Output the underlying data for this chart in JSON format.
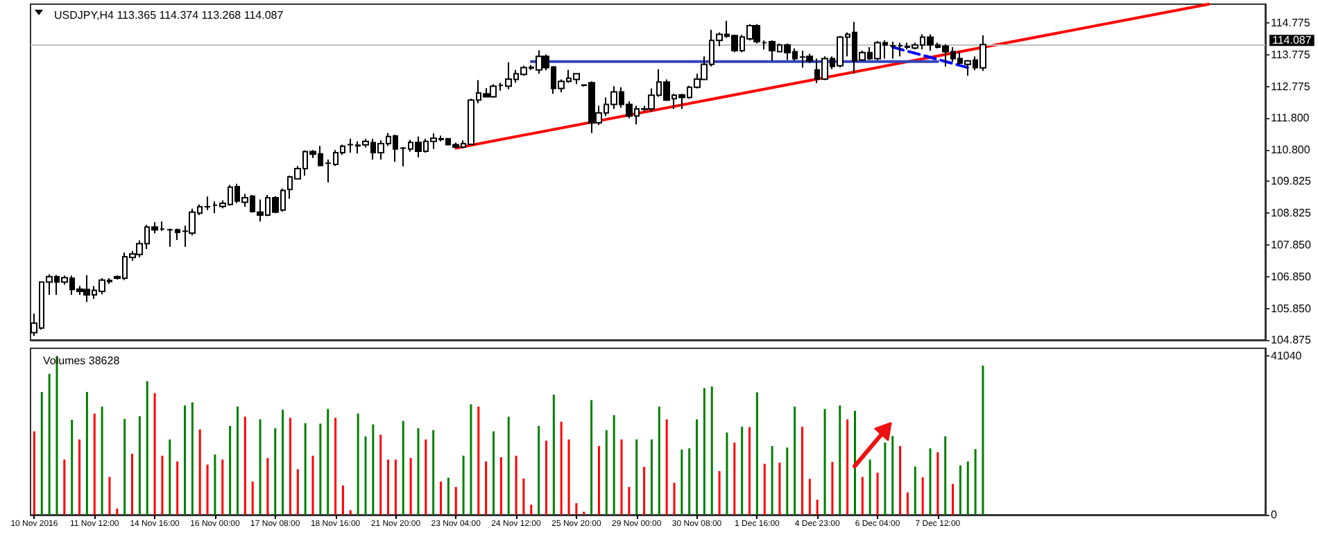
{
  "chart_data": [
    {
      "type": "candlestick",
      "title": "USDJPY,H4 113.365 114.374 113.268 114.087",
      "categories": [
        null,
        null,
        null,
        null,
        null,
        null,
        null,
        null,
        null,
        null,
        null,
        null,
        null,
        null,
        null,
        null,
        null,
        null,
        null,
        null,
        null,
        null,
        null,
        null,
        null,
        null,
        null,
        null,
        null,
        null,
        null,
        null,
        null,
        null,
        null,
        null,
        null,
        null,
        null,
        null,
        null,
        null,
        null,
        null,
        null,
        null,
        null,
        null,
        null,
        null,
        null,
        null,
        null,
        null,
        null,
        null,
        null,
        null,
        null,
        null,
        null,
        null,
        null,
        null,
        null,
        null,
        null,
        null,
        null,
        null,
        null,
        null,
        null,
        null,
        null,
        null,
        null,
        null,
        null,
        null,
        null,
        null,
        null,
        null,
        null,
        null,
        null,
        null,
        null,
        null,
        null,
        null,
        null,
        null,
        null,
        null,
        null,
        null,
        null,
        null,
        null,
        null,
        null,
        null,
        null,
        null,
        null,
        null,
        null,
        null,
        null,
        null,
        null,
        null,
        null,
        null,
        null,
        null,
        null,
        null,
        null,
        null,
        null,
        null,
        null,
        null,
        null,
        null,
        null,
        null,
        null,
        null,
        null,
        null,
        null,
        null,
        null,
        null,
        null,
        null,
        null,
        null,
        null,
        null,
        null,
        null,
        null,
        null,
        null,
        null,
        null,
        null,
        null,
        null,
        null,
        null,
        null,
        null,
        null,
        null,
        null,
        null,
        null,
        null
      ],
      "ohlc": [
        [
          105.1,
          105.7,
          105.0,
          105.4
        ],
        [
          105.25,
          106.7,
          105.2,
          106.68
        ],
        [
          106.68,
          106.92,
          106.28,
          106.85
        ],
        [
          106.85,
          106.9,
          106.28,
          106.68
        ],
        [
          106.68,
          106.88,
          106.6,
          106.82
        ],
        [
          106.8,
          106.88,
          106.28,
          106.45
        ],
        [
          106.46,
          106.56,
          106.28,
          106.39
        ],
        [
          106.45,
          106.9,
          106.06,
          106.28
        ],
        [
          106.28,
          106.56,
          106.16,
          106.42
        ],
        [
          106.39,
          106.8,
          106.3,
          106.74
        ],
        [
          106.73,
          106.8,
          106.62,
          106.7
        ],
        [
          106.85,
          106.88,
          106.76,
          106.8
        ],
        [
          106.8,
          107.6,
          106.74,
          107.47
        ],
        [
          107.45,
          107.65,
          107.35,
          107.56
        ],
        [
          107.54,
          107.98,
          107.45,
          107.88
        ],
        [
          107.88,
          108.47,
          107.71,
          108.4
        ],
        [
          108.4,
          108.55,
          108.2,
          108.31
        ],
        [
          108.33,
          108.57,
          108.28,
          108.33
        ],
        [
          108.31,
          108.35,
          107.78,
          108.31
        ],
        [
          108.31,
          108.35,
          107.99,
          108.23
        ],
        [
          108.27,
          108.44,
          107.78,
          108.27
        ],
        [
          108.21,
          108.97,
          108.14,
          108.86
        ],
        [
          108.83,
          109.1,
          108.77,
          109.03
        ],
        [
          109.03,
          109.35,
          108.93,
          109.03
        ],
        [
          109.08,
          109.2,
          108.83,
          109.08
        ],
        [
          109.04,
          109.23,
          108.98,
          109.14
        ],
        [
          109.1,
          109.71,
          109.07,
          109.64
        ],
        [
          109.66,
          109.75,
          109.14,
          109.21
        ],
        [
          109.17,
          109.43,
          109.03,
          109.31
        ],
        [
          109.36,
          109.4,
          108.85,
          108.88
        ],
        [
          108.86,
          109.26,
          108.57,
          108.77
        ],
        [
          108.77,
          109.4,
          108.74,
          109.31
        ],
        [
          109.31,
          109.36,
          108.83,
          108.86
        ],
        [
          108.93,
          109.6,
          108.88,
          109.54
        ],
        [
          109.57,
          110.0,
          109.28,
          109.96
        ],
        [
          109.9,
          110.3,
          109.88,
          110.22
        ],
        [
          110.22,
          110.79,
          110.0,
          110.75
        ],
        [
          110.75,
          110.8,
          110.55,
          110.67
        ],
        [
          110.68,
          110.93,
          110.29,
          110.32
        ],
        [
          110.39,
          110.5,
          109.79,
          110.39
        ],
        [
          110.35,
          110.8,
          110.3,
          110.72
        ],
        [
          110.72,
          110.97,
          110.65,
          110.92
        ],
        [
          110.97,
          111.15,
          110.72,
          110.97
        ],
        [
          110.93,
          111.07,
          110.69,
          110.95
        ],
        [
          110.96,
          111.15,
          110.88,
          111.07
        ],
        [
          111.03,
          111.15,
          110.5,
          110.72
        ],
        [
          110.72,
          111.1,
          110.5,
          111.0
        ],
        [
          111.0,
          111.33,
          110.93,
          111.22
        ],
        [
          111.24,
          111.28,
          110.43,
          110.83
        ],
        [
          110.86,
          110.89,
          110.29,
          110.86
        ],
        [
          110.83,
          111.12,
          110.75,
          111.04
        ],
        [
          111.04,
          111.22,
          110.57,
          110.76
        ],
        [
          110.76,
          111.15,
          110.72,
          111.07
        ],
        [
          111.07,
          111.32,
          110.83,
          111.17
        ],
        [
          111.15,
          111.25,
          111.07,
          111.13
        ],
        [
          111.15,
          111.18,
          110.94,
          110.97
        ],
        [
          110.97,
          111.03,
          110.86,
          110.89
        ],
        [
          110.89,
          111.1,
          110.86,
          111.0
        ],
        [
          110.98,
          112.4,
          110.95,
          112.36
        ],
        [
          112.36,
          112.98,
          112.26,
          112.58
        ],
        [
          112.55,
          112.73,
          112.45,
          112.46
        ],
        [
          112.46,
          112.85,
          112.43,
          112.79
        ],
        [
          112.82,
          112.9,
          112.65,
          112.82
        ],
        [
          112.79,
          113.54,
          112.7,
          113.01
        ],
        [
          113.0,
          113.3,
          112.9,
          113.18
        ],
        [
          113.16,
          113.43,
          113.12,
          113.37
        ],
        [
          113.36,
          113.45,
          113.3,
          113.38
        ],
        [
          113.3,
          113.91,
          113.18,
          113.72
        ],
        [
          113.72,
          113.78,
          113.29,
          113.37
        ],
        [
          113.39,
          113.42,
          112.55,
          112.72
        ],
        [
          112.72,
          113.0,
          112.6,
          112.94
        ],
        [
          112.94,
          113.3,
          112.9,
          113.04
        ],
        [
          113.0,
          113.2,
          112.86,
          113.18
        ],
        [
          112.83,
          112.85,
          112.78,
          112.82
        ],
        [
          112.9,
          112.94,
          111.33,
          111.65
        ],
        [
          111.65,
          112.18,
          111.58,
          111.96
        ],
        [
          111.96,
          112.44,
          111.86,
          112.22
        ],
        [
          112.22,
          112.79,
          112.08,
          112.61
        ],
        [
          112.61,
          112.76,
          112.12,
          112.22
        ],
        [
          112.22,
          112.32,
          111.79,
          111.86
        ],
        [
          111.86,
          112.18,
          111.6,
          112.08
        ],
        [
          112.07,
          112.18,
          112.0,
          112.08
        ],
        [
          112.08,
          112.72,
          112.0,
          112.51
        ],
        [
          112.51,
          113.32,
          112.46,
          112.92
        ],
        [
          112.92,
          113.0,
          112.33,
          112.36
        ],
        [
          112.4,
          112.55,
          112.08,
          112.51
        ],
        [
          112.52,
          112.55,
          112.08,
          112.44
        ],
        [
          112.44,
          112.8,
          112.4,
          112.76
        ],
        [
          112.76,
          113.18,
          112.72,
          113.01
        ],
        [
          113.0,
          113.72,
          112.98,
          113.47
        ],
        [
          113.47,
          114.55,
          113.41,
          114.22
        ],
        [
          114.22,
          114.47,
          114.04,
          114.41
        ],
        [
          114.41,
          114.83,
          114.3,
          114.35
        ],
        [
          114.37,
          114.4,
          113.85,
          113.9
        ],
        [
          113.9,
          114.39,
          113.85,
          114.33
        ],
        [
          114.27,
          114.73,
          114.22,
          114.68
        ],
        [
          114.68,
          114.73,
          114.12,
          114.18
        ],
        [
          114.15,
          114.22,
          113.94,
          114.15
        ],
        [
          114.18,
          114.22,
          113.58,
          113.9
        ],
        [
          113.87,
          114.12,
          113.85,
          114.08
        ],
        [
          114.08,
          114.12,
          113.61,
          113.84
        ],
        [
          113.87,
          113.97,
          113.58,
          113.65
        ],
        [
          113.7,
          113.9,
          113.37,
          113.7
        ],
        [
          113.72,
          113.8,
          113.51,
          113.58
        ],
        [
          113.3,
          113.65,
          112.89,
          113.01
        ],
        [
          113.01,
          113.72,
          112.98,
          113.65
        ],
        [
          113.65,
          113.72,
          113.32,
          113.41
        ],
        [
          113.43,
          114.36,
          113.38,
          114.32
        ],
        [
          114.32,
          114.47,
          113.72,
          114.41
        ],
        [
          114.47,
          114.8,
          113.18,
          113.58
        ],
        [
          113.61,
          113.9,
          113.58,
          113.84
        ],
        [
          113.84,
          114.01,
          113.61,
          113.65
        ],
        [
          113.65,
          114.2,
          113.6,
          114.15
        ],
        [
          114.15,
          114.22,
          113.65,
          114.08
        ],
        [
          114.05,
          114.18,
          113.65,
          114.05
        ],
        [
          114.05,
          114.15,
          113.72,
          114.05
        ],
        [
          114.01,
          114.15,
          113.94,
          114.03
        ],
        [
          113.98,
          114.15,
          113.94,
          114.08
        ],
        [
          114.08,
          114.41,
          113.94,
          114.32
        ],
        [
          114.32,
          114.41,
          113.9,
          114.08
        ],
        [
          114.08,
          114.15,
          113.97,
          114.01
        ],
        [
          114.04,
          114.1,
          113.41,
          113.87
        ],
        [
          113.87,
          114.01,
          113.55,
          113.65
        ],
        [
          113.65,
          113.87,
          113.47,
          113.51
        ],
        [
          113.47,
          113.61,
          113.12,
          113.58
        ],
        [
          113.61,
          113.72,
          113.29,
          113.37
        ],
        [
          113.365,
          114.374,
          113.268,
          114.087
        ],
        null,
        null,
        null,
        null,
        null,
        null,
        null,
        null,
        null,
        null,
        null,
        null,
        null,
        null,
        null,
        null,
        null,
        null,
        null,
        null,
        null,
        null,
        null,
        null,
        null,
        null,
        null,
        null,
        null,
        null,
        null,
        null,
        null,
        null,
        null,
        null,
        null
      ],
      "series": [
        {
          "type": "line",
          "color": "#ff0000",
          "values": [
            null,
            null,
            null,
            null,
            null,
            null,
            null,
            null,
            null,
            null,
            null,
            null,
            null,
            null,
            null,
            null,
            null,
            null,
            null,
            null,
            null,
            null,
            null,
            null,
            null,
            null,
            null,
            null,
            null,
            null,
            null,
            null,
            null,
            null,
            null,
            null,
            null,
            null,
            null,
            null,
            null,
            null,
            null,
            null,
            null,
            null,
            null,
            null,
            null,
            null,
            null,
            null,
            null,
            null,
            null,
            null,
            110.86,
            null,
            null,
            null,
            null,
            null,
            null,
            null,
            null,
            null,
            null,
            null,
            null,
            null,
            null,
            null,
            null,
            null,
            null,
            null,
            null,
            null,
            null,
            null,
            null,
            null,
            null,
            null,
            null,
            null,
            null,
            null,
            null,
            null,
            null,
            null,
            null,
            null,
            null,
            null,
            null,
            null,
            null,
            null,
            null,
            null,
            null,
            null,
            null,
            null,
            null,
            null,
            null,
            null,
            null,
            null,
            null,
            null,
            null,
            null,
            null,
            null,
            null,
            null,
            null,
            null,
            null,
            null,
            null,
            null,
            null,
            null,
            null,
            null,
            null,
            null,
            null,
            null,
            null,
            null,
            null,
            null,
            null,
            null,
            null,
            null,
            null,
            null,
            null,
            null,
            null,
            null,
            null,
            null,
            null,
            null,
            null,
            null,
            null,
            null,
            115.35,
            null,
            null,
            null,
            null,
            null,
            null,
            null
          ]
        },
        {
          "type": "line",
          "color": "#3344bb",
          "values": [
            null,
            null,
            null,
            null,
            null,
            null,
            null,
            null,
            null,
            null,
            null,
            null,
            null,
            null,
            null,
            null,
            null,
            null,
            null,
            null,
            null,
            null,
            null,
            null,
            null,
            null,
            null,
            null,
            null,
            null,
            null,
            null,
            null,
            null,
            null,
            null,
            null,
            null,
            null,
            null,
            null,
            null,
            null,
            null,
            null,
            null,
            null,
            null,
            null,
            null,
            null,
            null,
            null,
            null,
            null,
            null,
            null,
            null,
            null,
            null,
            null,
            null,
            null,
            null,
            null,
            null,
            113.56,
            null,
            null,
            null,
            null,
            null,
            null,
            null,
            null,
            null,
            null,
            null,
            null,
            null,
            null,
            null,
            null,
            null,
            null,
            null,
            null,
            null,
            null,
            null,
            null,
            null,
            null,
            null,
            null,
            null,
            null,
            null,
            null,
            null,
            null,
            null,
            null,
            null,
            null,
            null,
            null,
            null,
            null,
            null,
            null,
            null,
            null,
            null,
            null,
            null,
            null,
            null,
            null,
            null,
            113.56,
            null,
            null,
            null,
            null,
            null,
            null,
            null,
            null,
            null,
            null,
            null,
            null,
            null,
            null,
            null,
            null,
            null,
            null,
            null,
            null,
            null,
            null,
            null,
            null,
            null,
            null,
            null,
            null,
            null,
            null,
            null,
            null,
            null,
            null,
            null,
            null,
            null,
            null,
            null,
            null,
            null,
            null,
            null
          ]
        },
        {
          "type": "line",
          "color": "#0000ff",
          "line_style": "dashed",
          "values": [
            null,
            null,
            null,
            null,
            null,
            null,
            null,
            null,
            null,
            null,
            null,
            null,
            null,
            null,
            null,
            null,
            null,
            null,
            null,
            null,
            null,
            null,
            null,
            null,
            null,
            null,
            null,
            null,
            null,
            null,
            null,
            null,
            null,
            null,
            null,
            null,
            null,
            null,
            null,
            null,
            null,
            null,
            null,
            null,
            null,
            null,
            null,
            null,
            null,
            null,
            null,
            null,
            null,
            null,
            null,
            null,
            null,
            null,
            null,
            null,
            null,
            null,
            null,
            null,
            null,
            null,
            null,
            null,
            null,
            null,
            null,
            null,
            null,
            null,
            null,
            null,
            null,
            null,
            null,
            null,
            null,
            null,
            null,
            null,
            null,
            null,
            null,
            null,
            null,
            null,
            null,
            null,
            null,
            null,
            null,
            null,
            null,
            null,
            null,
            null,
            null,
            null,
            null,
            null,
            null,
            null,
            null,
            null,
            null,
            null,
            null,
            null,
            null,
            null,
            114.01,
            null,
            null,
            null,
            null,
            null,
            null,
            null,
            null,
            null,
            113.37,
            null,
            null,
            null,
            null,
            null,
            null,
            null,
            null,
            null,
            null,
            null,
            null,
            null,
            null,
            null,
            null,
            null,
            null,
            null,
            null,
            null,
            null,
            null,
            null,
            null,
            null,
            null,
            null,
            null,
            null,
            null,
            null,
            null,
            null,
            null,
            null,
            null,
            null,
            null
          ]
        }
      ],
      "ylim": [
        104.875,
        115.35
      ],
      "yticks": [
        104.875,
        {
          "value": 105.85,
          "label": "105.850"
        },
        {
          "value": 106.85,
          "label": "106.850"
        },
        {
          "value": 107.85,
          "label": "107.850"
        },
        108.825,
        109.825,
        {
          "value": 110.8,
          "label": "110.800"
        },
        {
          "value": 111.8,
          "label": "111.800"
        },
        112.775,
        113.775,
        114.775
      ],
      "ref_lines": [
        {
          "axis": "y",
          "value": 114.087,
          "label": "114.087",
          "color": "#c0c0c0"
        }
      ],
      "tick_labels": "y"
    },
    {
      "type": "bar",
      "title": "Volumes 38628",
      "categories": [
        "10 Nov 2016",
        null,
        null,
        null,
        null,
        null,
        null,
        null,
        "11 Nov 12:00",
        null,
        null,
        null,
        null,
        null,
        null,
        null,
        "14 Nov 16:00",
        null,
        null,
        null,
        null,
        null,
        null,
        null,
        "16 Nov 00:00",
        null,
        null,
        null,
        null,
        null,
        null,
        null,
        "17 Nov 08:00",
        null,
        null,
        null,
        null,
        null,
        null,
        null,
        "18 Nov 16:00",
        null,
        null,
        null,
        null,
        null,
        null,
        null,
        "21 Nov 20:00",
        null,
        null,
        null,
        null,
        null,
        null,
        null,
        "23 Nov 04:00",
        null,
        null,
        null,
        null,
        null,
        null,
        null,
        "24 Nov 12:00",
        null,
        null,
        null,
        null,
        null,
        null,
        null,
        "25 Nov 20:00",
        null,
        null,
        null,
        null,
        null,
        null,
        null,
        "29 Nov 00:00",
        null,
        null,
        null,
        null,
        null,
        null,
        null,
        "30 Nov 08:00",
        null,
        null,
        null,
        null,
        null,
        null,
        null,
        "1 Dec 16:00",
        null,
        null,
        null,
        null,
        null,
        null,
        null,
        "4 Dec 23:00",
        null,
        null,
        null,
        null,
        null,
        null,
        null,
        "6 Dec 04:00",
        null,
        null,
        null,
        null,
        null,
        null,
        null,
        "7 Dec 12:00",
        null,
        null,
        null,
        null,
        null,
        null,
        null,
        null,
        null,
        null,
        null,
        null,
        null,
        null,
        null,
        null,
        null,
        null,
        null,
        null,
        null,
        null,
        null,
        null,
        null,
        null,
        null,
        null,
        null,
        null,
        null,
        null,
        null,
        null,
        null,
        null,
        null,
        null,
        null,
        null,
        null,
        null,
        null
      ],
      "values": [
        21600,
        31800,
        36500,
        41040,
        14300,
        24600,
        19500,
        31800,
        26200,
        28000,
        9800,
        1600,
        24800,
        15800,
        25500,
        34600,
        31500,
        15300,
        19500,
        13800,
        28300,
        29100,
        22100,
        13000,
        15600,
        14300,
        23000,
        28000,
        25400,
        8600,
        24700,
        14700,
        22400,
        27200,
        25100,
        11800,
        23700,
        15300,
        23600,
        27400,
        25100,
        7600,
        1200,
        26200,
        20300,
        23400,
        20700,
        14300,
        14300,
        24300,
        14700,
        22400,
        19500,
        21900,
        8600,
        9600,
        7200,
        15300,
        28600,
        28000,
        13800,
        21600,
        14900,
        25400,
        15300,
        9400,
        2600,
        23000,
        19200,
        31100,
        24100,
        19500,
        3000,
        800,
        29700,
        17800,
        21900,
        25800,
        19500,
        7200,
        19500,
        12400,
        19500,
        28000,
        24700,
        8300,
        16900,
        17200,
        24700,
        32800,
        33200,
        11300,
        21300,
        18700,
        22800,
        22700,
        31700,
        13200,
        17800,
        13500,
        17400,
        28000,
        22800,
        9300,
        3900,
        27400,
        13700,
        28300,
        24700,
        26900,
        9800,
        14300,
        10900,
        18700,
        20400,
        17800,
        5800,
        12500,
        9700,
        17200,
        16200,
        20300,
        8000,
        12800,
        13800,
        17000,
        38628,
        null,
        null,
        null,
        null,
        null,
        null,
        null,
        null,
        null,
        null,
        null,
        null,
        null,
        null,
        null,
        null,
        null,
        null,
        null,
        null,
        null,
        null,
        null,
        null,
        null,
        null,
        null,
        null,
        null,
        null,
        null,
        null,
        null,
        null,
        null,
        null,
        null
      ],
      "colors": [
        "#ff0000",
        "#008000",
        "#008000",
        "#008000",
        "#ff0000",
        "#008000",
        "#ff0000",
        "#008000",
        "#ff0000",
        "#008000",
        "#ff0000",
        "#ff0000",
        "#008000",
        "#ff0000",
        "#008000",
        "#008000",
        "#ff0000",
        "#ff0000",
        "#008000",
        "#ff0000",
        "#008000",
        "#008000",
        "#ff0000",
        "#ff0000",
        "#008000",
        "#ff0000",
        "#008000",
        "#008000",
        "#ff0000",
        "#ff0000",
        "#008000",
        "#ff0000",
        "#008000",
        "#008000",
        "#ff0000",
        "#ff0000",
        "#008000",
        "#ff0000",
        "#008000",
        "#008000",
        "#ff0000",
        "#ff0000",
        "#ff0000",
        "#008000",
        "#008000",
        "#008000",
        "#ff0000",
        "#ff0000",
        "#ff0000",
        "#008000",
        "#ff0000",
        "#008000",
        "#ff0000",
        "#008000",
        "#ff0000",
        "#008000",
        "#ff0000",
        "#008000",
        "#008000",
        "#ff0000",
        "#ff0000",
        "#008000",
        "#ff0000",
        "#008000",
        "#ff0000",
        "#ff0000",
        "#ff0000",
        "#008000",
        "#ff0000",
        "#008000",
        "#ff0000",
        "#ff0000",
        "#ff0000",
        "#ff0000",
        "#008000",
        "#ff0000",
        "#008000",
        "#008000",
        "#ff0000",
        "#ff0000",
        "#008000",
        "#ff0000",
        "#008000",
        "#008000",
        "#ff0000",
        "#ff0000",
        "#008000",
        "#008000",
        "#008000",
        "#008000",
        "#008000",
        "#ff0000",
        "#008000",
        "#ff0000",
        "#008000",
        "#ff0000",
        "#008000",
        "#ff0000",
        "#008000",
        "#ff0000",
        "#008000",
        "#008000",
        "#ff0000",
        "#ff0000",
        "#ff0000",
        "#008000",
        "#ff0000",
        "#008000",
        "#ff0000",
        "#008000",
        "#ff0000",
        "#008000",
        "#ff0000",
        "#008000",
        "#008000",
        "#ff0000",
        "#ff0000",
        "#008000",
        "#ff0000",
        "#008000",
        "#ff0000",
        "#008000",
        "#ff0000",
        "#008000",
        "#008000",
        "#008000",
        "#008000",
        null,
        null,
        null,
        null,
        null,
        null,
        null,
        null,
        null,
        null,
        null,
        null,
        null,
        null,
        null,
        null,
        null,
        null,
        null,
        null,
        null,
        null,
        null,
        null,
        null,
        null,
        null,
        null,
        null,
        null,
        null,
        null,
        null,
        null,
        null,
        null,
        null
      ],
      "ylim": [
        0,
        43100
      ],
      "yticks": [
        0,
        41040
      ]
    }
  ]
}
